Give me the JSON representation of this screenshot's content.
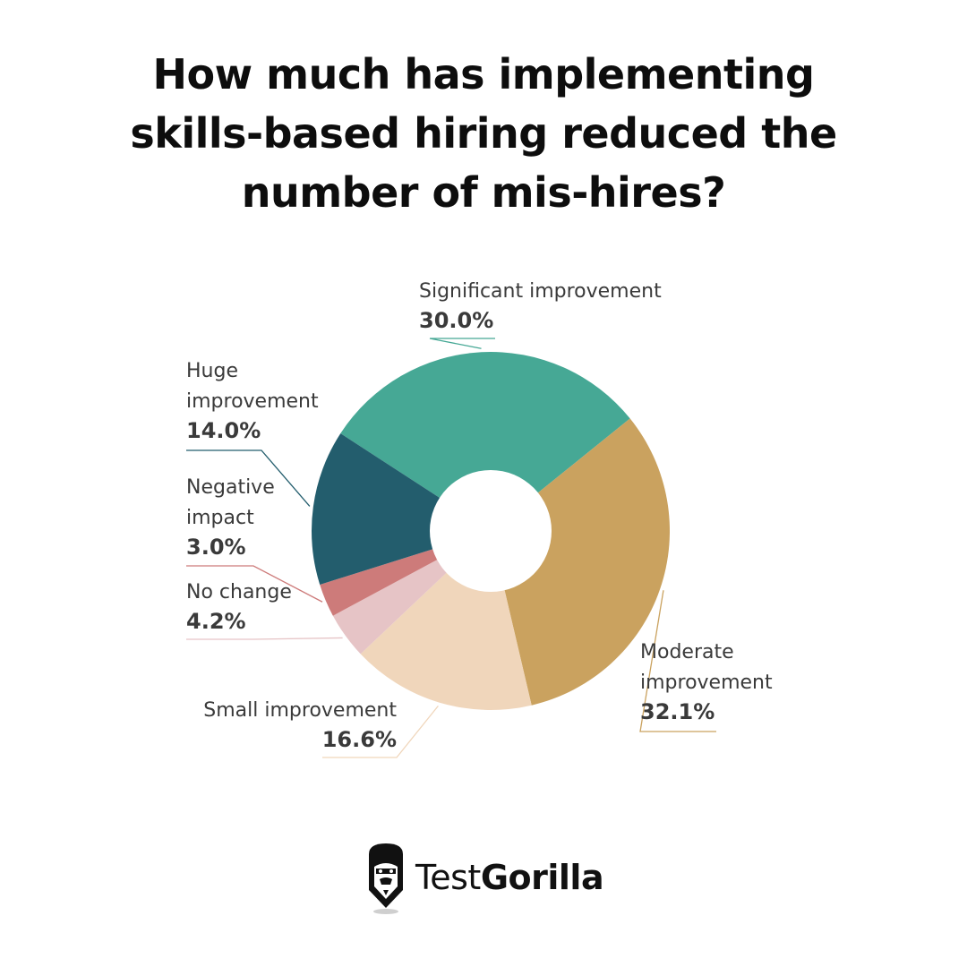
{
  "title_lines": [
    "How much has implementing",
    "skills-based hiring reduced the",
    "number of mis-hires?"
  ],
  "chart_data": {
    "type": "pie",
    "donut": true,
    "title": "How much has implementing skills-based hiring reduced the number of mis-hires?",
    "slices": [
      {
        "label": "Significant improvement",
        "label_lines": [
          "Significant improvement"
        ],
        "value": 30.0,
        "value_label": "30.0%",
        "color": "#46a895"
      },
      {
        "label": "Moderate improvement",
        "label_lines": [
          "Moderate",
          "improvement"
        ],
        "value": 32.1,
        "value_label": "32.1%",
        "color": "#caa25f"
      },
      {
        "label": "Small improvement",
        "label_lines": [
          "Small improvement"
        ],
        "value": 16.6,
        "value_label": "16.6%",
        "color": "#f0d6bb"
      },
      {
        "label": "No change",
        "label_lines": [
          "No change"
        ],
        "value": 4.2,
        "value_label": "4.2%",
        "color": "#e6c4c6"
      },
      {
        "label": "Negative impact",
        "label_lines": [
          "Negative",
          "impact"
        ],
        "value": 3.0,
        "value_label": "3.0%",
        "color": "#cd7b7a"
      },
      {
        "label": "Huge improvement",
        "label_lines": [
          "Huge",
          "improvement"
        ],
        "value": 14.0,
        "value_label": "14.0%",
        "color": "#235d6d"
      }
    ],
    "legend": "none"
  },
  "brand": {
    "name_part1": "Test",
    "name_part2": "Gorilla",
    "icon": "gorilla-logo-icon"
  }
}
